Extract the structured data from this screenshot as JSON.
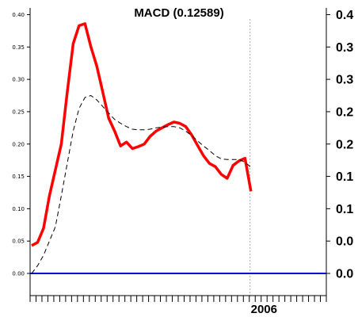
{
  "chart_data": {
    "type": "line",
    "title": "MACD (0.12589)",
    "ylim": [
      -0.03,
      0.41
    ],
    "left_ticks": [
      "0.00",
      "0.05",
      "0.10",
      "0.15",
      "0.20",
      "0.25",
      "0.30",
      "0.35",
      "0.40"
    ],
    "left_tick_values": [
      0.0,
      0.05,
      0.1,
      0.15,
      0.2,
      0.25,
      0.3,
      0.35,
      0.4
    ],
    "right_ticks": [
      "0.0",
      "0.0",
      "0.1",
      "0.1",
      "0.2",
      "0.2",
      "0.3",
      "0.3",
      "0.4"
    ],
    "right_tick_values": [
      0.0,
      0.05,
      0.1,
      0.15,
      0.2,
      0.25,
      0.3,
      0.35,
      0.4
    ],
    "x_label": "2006",
    "x_label_index": 37,
    "x_count": 50,
    "zero_line": 0.0,
    "grid": false,
    "series": [
      {
        "color": "#ff0000",
        "style": "solid",
        "values": [
          0.043,
          0.048,
          0.07,
          0.12,
          0.16,
          0.2,
          0.28,
          0.355,
          0.383,
          0.386,
          0.35,
          0.32,
          0.28,
          0.24,
          0.22,
          0.197,
          0.203,
          0.193,
          0.196,
          0.2,
          0.212,
          0.22,
          0.225,
          0.23,
          0.234,
          0.232,
          0.227,
          0.214,
          0.198,
          0.182,
          0.17,
          0.165,
          0.153,
          0.147,
          0.167,
          0.174,
          0.178,
          0.127
        ]
      },
      {
        "color": "#000000",
        "style": "dashed",
        "values": [
          0.0,
          0.012,
          0.028,
          0.05,
          0.072,
          0.12,
          0.17,
          0.22,
          0.255,
          0.272,
          0.275,
          0.268,
          0.258,
          0.248,
          0.238,
          0.232,
          0.227,
          0.223,
          0.222,
          0.222,
          0.223,
          0.225,
          0.226,
          0.227,
          0.227,
          0.225,
          0.22,
          0.213,
          0.205,
          0.197,
          0.19,
          0.182,
          0.177,
          0.176,
          0.176,
          0.176,
          0.172,
          0.164
        ]
      }
    ]
  }
}
